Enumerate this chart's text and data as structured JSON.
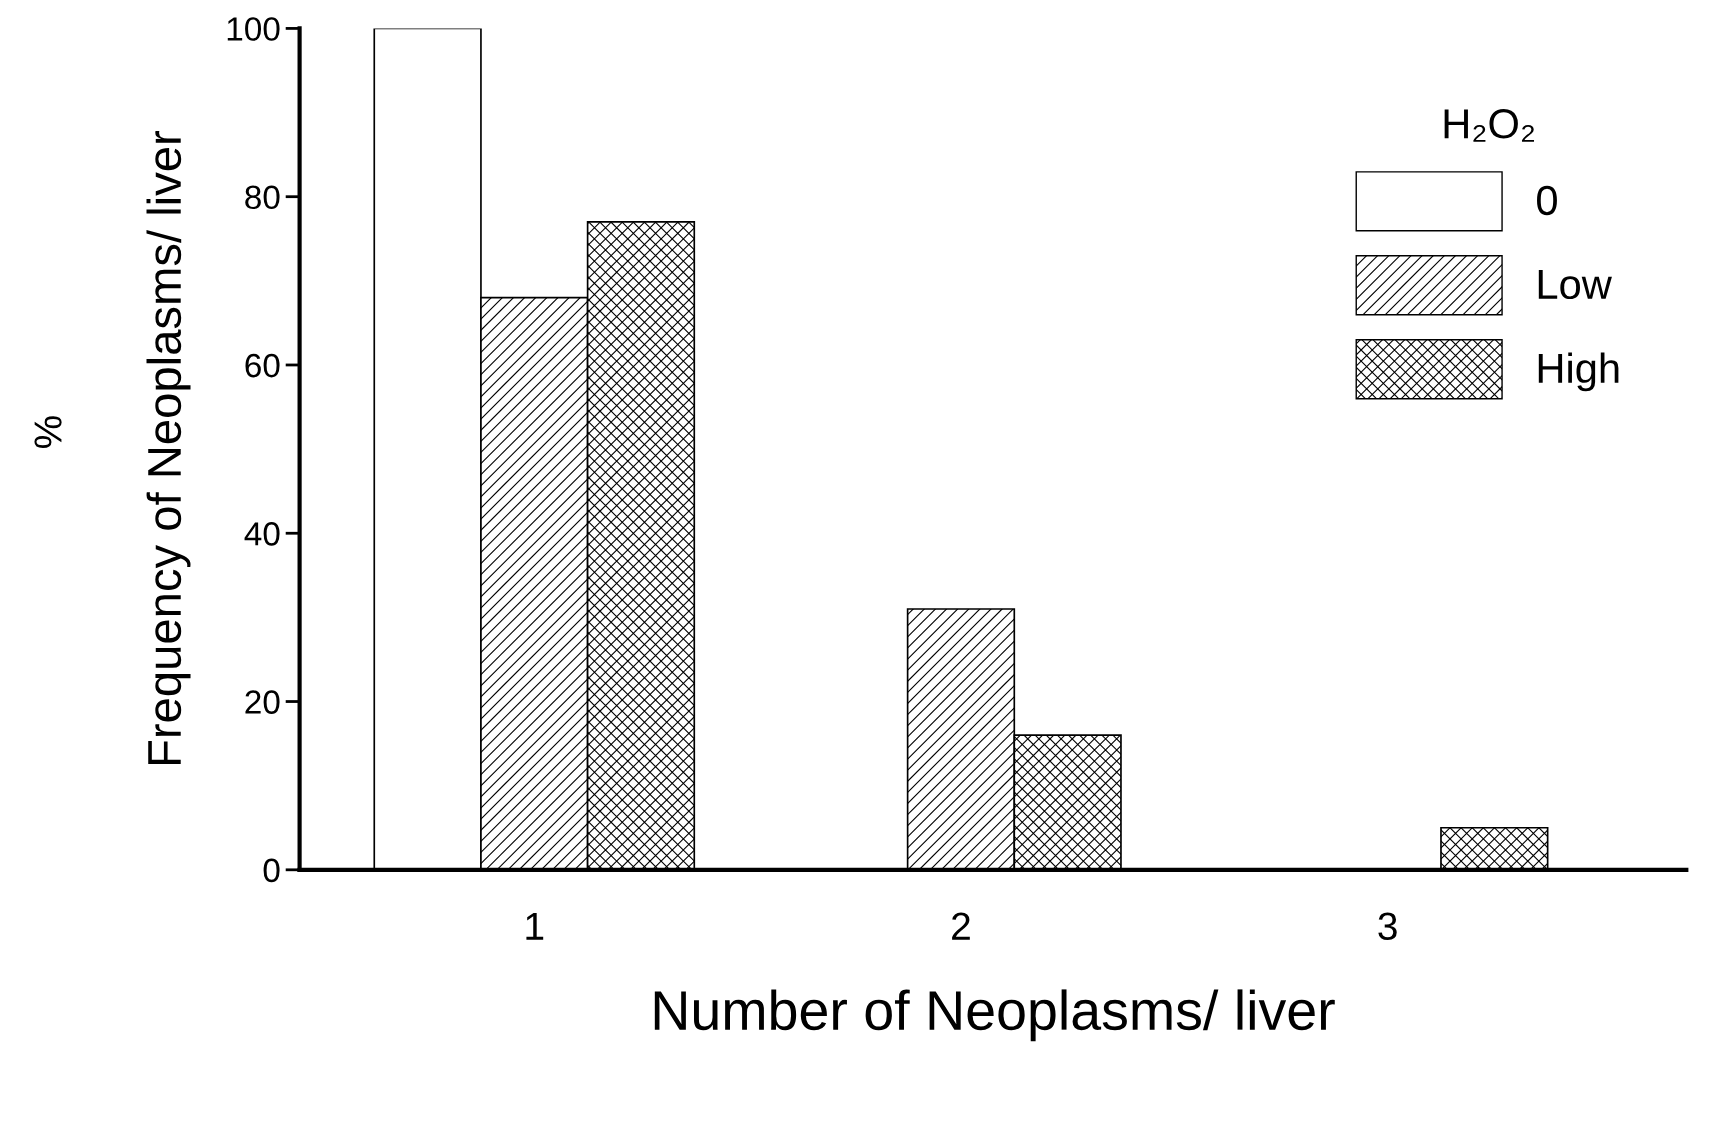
{
  "chart_data": {
    "type": "bar",
    "xlabel": "Number of Neoplasms/ liver",
    "ylabel": "Frequency of Neoplasms/ liver",
    "legend_title": "H₂O₂",
    "annotations": [
      "%"
    ],
    "categories": [
      "1",
      "2",
      "3"
    ],
    "series": [
      {
        "name": "0",
        "color": "#000000",
        "values": [
          100,
          null,
          null
        ]
      },
      {
        "name": "Low",
        "color": "#000000",
        "values": [
          68,
          31,
          null
        ]
      },
      {
        "name": "High",
        "color": "#000000",
        "values": [
          77,
          16,
          5
        ]
      }
    ],
    "ylim": [
      0,
      100
    ],
    "yticks": [
      0,
      20,
      40,
      60,
      80,
      100
    ],
    "grid": false,
    "legend": "top right"
  }
}
